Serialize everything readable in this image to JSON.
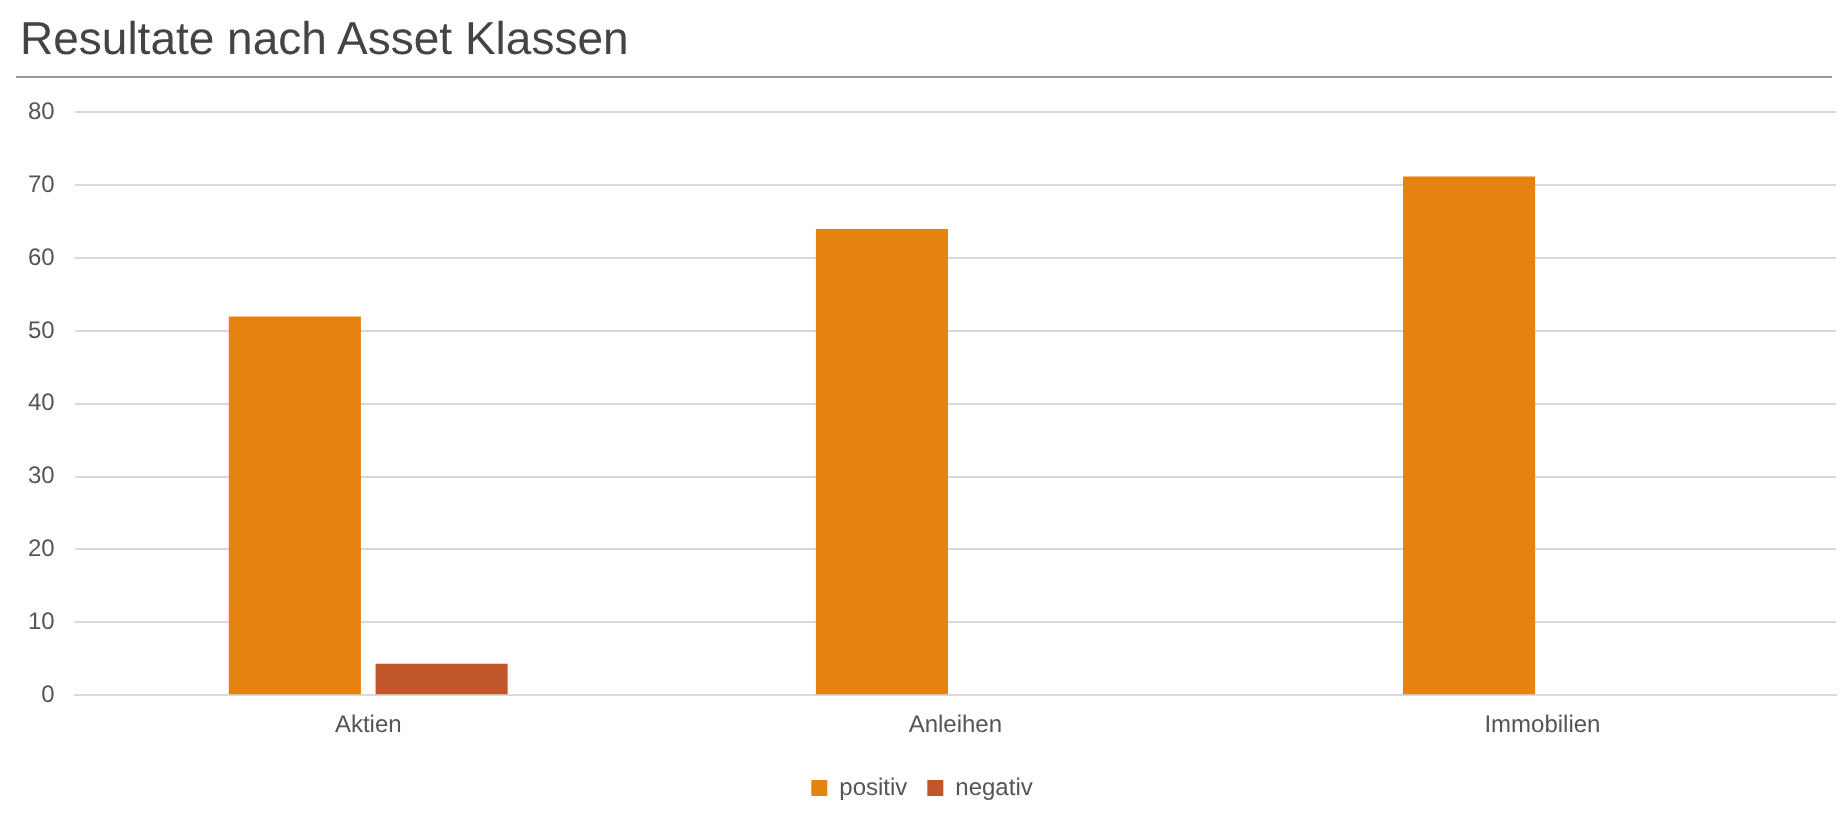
{
  "chart_data": {
    "type": "bar",
    "title": "Resultate nach Asset Klassen",
    "categories": [
      "Aktien",
      "Anleihen",
      "Immobilien"
    ],
    "series": [
      {
        "name": "positiv",
        "color": "#e6820f",
        "values": [
          52,
          64,
          71.2
        ]
      },
      {
        "name": "negativ",
        "color": "#c0562a",
        "values": [
          4.3,
          0,
          0
        ]
      }
    ],
    "ylim": [
      0,
      80
    ],
    "yticks": [
      0,
      10,
      20,
      30,
      40,
      50,
      60,
      70,
      80
    ],
    "grid": "y",
    "legend": "bottom"
  }
}
